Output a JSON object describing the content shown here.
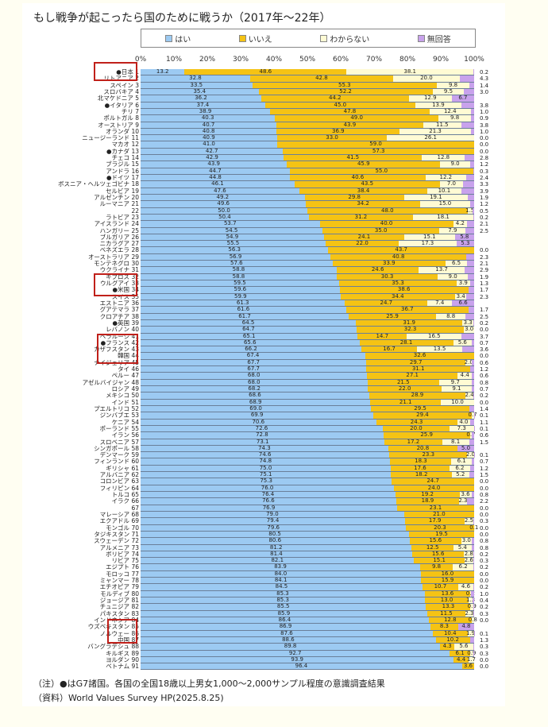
{
  "title": "もし戦争が起こったら国のために戦うか（2017年〜22年）",
  "legend": [
    {
      "label": "はい",
      "color": "#9ccaf2"
    },
    {
      "label": "いいえ",
      "color": "#f5c314"
    },
    {
      "label": "わからない",
      "color": "#fffbd4"
    },
    {
      "label": "無回答",
      "color": "#c8a2ec"
    }
  ],
  "axis_ticks": [
    "0%",
    "10%",
    "20%",
    "30%",
    "40%",
    "50%",
    "60%",
    "70%",
    "80%",
    "90%",
    "100%"
  ],
  "notes": {
    "note": "（注）●はG7諸国。各国の全国18歳以上男女1,000〜2,000サンプル程度の意識調査結果",
    "source": "（資料）World Values Survey HP(2025.8.25)"
  },
  "highlights": [
    "日本",
    "米国",
    "フランス",
    "韓国",
    "中国"
  ],
  "chart_data": {
    "type": "bar",
    "orientation": "horizontal-stacked-100",
    "title": "もし戦争が起こったら国のために戦うか（2017年〜22年）",
    "series_names": [
      "はい",
      "いいえ",
      "わからない",
      "無回答"
    ],
    "xlim": [
      0,
      100
    ],
    "legend_position": "top",
    "rows": [
      {
        "rank": 1,
        "country": "●日本",
        "yes": 13.2,
        "no": 48.6,
        "dk": 38.1,
        "na": 0.2
      },
      {
        "rank": 2,
        "country": "リトアニア",
        "yes": 32.8,
        "no": 42.8,
        "dk": 20.0,
        "na": 4.3
      },
      {
        "rank": 3,
        "country": "スペイン",
        "yes": 33.5,
        "no": 55.3,
        "dk": 9.8,
        "na": 1.4
      },
      {
        "rank": 4,
        "country": "スロバキア",
        "yes": 35.4,
        "no": 52.2,
        "dk": 9.5,
        "na": 3.0
      },
      {
        "rank": 5,
        "country": "北マケドニア",
        "yes": 36.2,
        "no": 44.2,
        "dk": 12.9,
        "na": 6.7
      },
      {
        "rank": 6,
        "country": "●イタリア",
        "yes": 37.4,
        "no": 45.0,
        "dk": 13.9,
        "na": 3.8
      },
      {
        "rank": 7,
        "country": "チリ",
        "yes": 38.9,
        "no": 47.8,
        "dk": 12.4,
        "na": 1.0
      },
      {
        "rank": 8,
        "country": "ポルトガル",
        "yes": 40.3,
        "no": 49.0,
        "dk": 9.8,
        "na": 0.9
      },
      {
        "rank": 9,
        "country": "オーストリア",
        "yes": 40.7,
        "no": 43.9,
        "dk": 11.5,
        "na": 3.8
      },
      {
        "rank": 10,
        "country": "オランダ",
        "yes": 40.8,
        "no": 36.9,
        "dk": 21.3,
        "na": 1.0
      },
      {
        "rank": 11,
        "country": "ニュージーランド",
        "yes": 40.9,
        "no": 33.0,
        "dk": 26.1,
        "na": 0.0
      },
      {
        "rank": 12,
        "country": "マカオ",
        "yes": 41.0,
        "no": 59.0,
        "dk": 0,
        "na": 0.0
      },
      {
        "rank": 13,
        "country": "●カナダ",
        "yes": 42.7,
        "no": 57.3,
        "dk": 0,
        "na": 0.0
      },
      {
        "rank": 14,
        "country": "チェコ",
        "yes": 42.9,
        "no": 41.5,
        "dk": 12.8,
        "na": 2.8
      },
      {
        "rank": 15,
        "country": "ブラジル",
        "yes": 43.9,
        "no": 45.9,
        "dk": 9.0,
        "na": 1.2
      },
      {
        "rank": 16,
        "country": "アンドラ",
        "yes": 44.7,
        "no": 55.0,
        "dk": 0,
        "na": 0.3
      },
      {
        "rank": 17,
        "country": "●ドイツ",
        "yes": 44.8,
        "no": 40.6,
        "dk": 12.2,
        "na": 2.4
      },
      {
        "rank": 18,
        "country": "ボスニア・ヘルツェゴビナ",
        "yes": 46.1,
        "no": 43.5,
        "dk": 7.0,
        "na": 3.3
      },
      {
        "rank": 19,
        "country": "セルビア",
        "yes": 47.6,
        "no": 38.4,
        "dk": 10.1,
        "na": 3.9
      },
      {
        "rank": 20,
        "country": "アルゼンチン",
        "yes": 49.2,
        "no": 29.8,
        "dk": 19.1,
        "na": 1.9
      },
      {
        "rank": 21,
        "country": "ルーマニア",
        "yes": 49.6,
        "no": 34.2,
        "dk": 15.0,
        "na": 1.2
      },
      {
        "rank": 22,
        "country": "",
        "yes": 50.0,
        "no": 48.0,
        "dk": 1.5,
        "na": 0.5
      },
      {
        "rank": 23,
        "country": "ラトビア",
        "yes": 50.4,
        "no": 31.2,
        "dk": 18.1,
        "na": 0.2
      },
      {
        "rank": 24,
        "country": "アイスランド",
        "yes": 53.7,
        "no": 40.0,
        "dk": 4.2,
        "na": 2.1
      },
      {
        "rank": 25,
        "country": "ハンガリー",
        "yes": 54.5,
        "no": 35.0,
        "dk": 7.9,
        "na": 2.5
      },
      {
        "rank": 26,
        "country": "ブルガリア",
        "yes": 54.9,
        "no": 24.1,
        "dk": 15.1,
        "na": 5.8
      },
      {
        "rank": 27,
        "country": "ニカラグア",
        "yes": 55.5,
        "no": 22.0,
        "dk": 17.3,
        "na": 5.3
      },
      {
        "rank": 28,
        "country": "ベネズエラ",
        "yes": 56.3,
        "no": 43.7,
        "dk": 0,
        "na": 0.0
      },
      {
        "rank": 29,
        "country": "オーストラリア",
        "yes": 56.9,
        "no": 40.8,
        "dk": 0,
        "na": 2.3
      },
      {
        "rank": 30,
        "country": "モンテネグロ",
        "yes": 57.6,
        "no": 33.9,
        "dk": 6.5,
        "na": 2.1
      },
      {
        "rank": 31,
        "country": "ウクライナ",
        "yes": 58.8,
        "no": 24.6,
        "dk": 13.7,
        "na": 2.9
      },
      {
        "rank": 32,
        "country": "キプロス",
        "yes": 58.8,
        "no": 30.3,
        "dk": 9.0,
        "na": 1.9
      },
      {
        "rank": 33,
        "country": "ウルグアイ",
        "yes": 59.5,
        "no": 35.3,
        "dk": 3.9,
        "na": 1.3
      },
      {
        "rank": 34,
        "country": "●米国",
        "yes": 59.6,
        "no": 38.6,
        "dk": 0,
        "na": 1.7
      },
      {
        "rank": 35,
        "country": "スイス",
        "yes": 59.9,
        "no": 34.4,
        "dk": 3.4,
        "na": 2.3
      },
      {
        "rank": 36,
        "country": "エストニア",
        "yes": 61.3,
        "no": 24.7,
        "dk": 7.4,
        "na": 6.6
      },
      {
        "rank": 37,
        "country": "グアテマラ",
        "yes": 61.6,
        "no": 36.7,
        "dk": 0,
        "na": 1.7
      },
      {
        "rank": 38,
        "country": "クロアチア",
        "yes": 61.7,
        "no": 25.9,
        "dk": 8.8,
        "na": 2.5
      },
      {
        "rank": 39,
        "country": "●英国",
        "yes": 64.5,
        "no": 31.9,
        "dk": 3.3,
        "na": 0.2
      },
      {
        "rank": 40,
        "country": "レバノン",
        "yes": 64.7,
        "no": 32.3,
        "dk": 3.0,
        "na": 0.0
      },
      {
        "rank": 41,
        "country": "ベラルーシ",
        "yes": 65.1,
        "no": 14.7,
        "dk": 16.5,
        "na": 3.7
      },
      {
        "rank": 42,
        "country": "●フランス",
        "yes": 65.6,
        "no": 28.1,
        "dk": 5.6,
        "na": 0.7
      },
      {
        "rank": 43,
        "country": "カザフスタン",
        "yes": 66.2,
        "no": 16.7,
        "dk": 13.5,
        "na": 3.6
      },
      {
        "rank": 44,
        "country": "韓国",
        "yes": 67.4,
        "no": 32.6,
        "dk": 0,
        "na": 0.0
      },
      {
        "rank": 45,
        "country": "ナイジェリア",
        "yes": 67.7,
        "no": 29.7,
        "dk": 2.0,
        "na": 0.6
      },
      {
        "rank": 46,
        "country": "タイ",
        "yes": 67.7,
        "no": 31.1,
        "dk": 0,
        "na": 1.2
      },
      {
        "rank": 47,
        "country": "ペルー",
        "yes": 68.0,
        "no": 27.1,
        "dk": 4.4,
        "na": 0.6
      },
      {
        "rank": 48,
        "country": "アゼルバイジャン",
        "yes": 68.0,
        "no": 21.5,
        "dk": 9.7,
        "na": 0.8
      },
      {
        "rank": 49,
        "country": "ロシア",
        "yes": 68.2,
        "no": 22.0,
        "dk": 9.1,
        "na": 0.7
      },
      {
        "rank": 50,
        "country": "メキシコ",
        "yes": 68.6,
        "no": 28.9,
        "dk": 2.4,
        "na": 0.2
      },
      {
        "rank": 51,
        "country": "インド",
        "yes": 68.9,
        "no": 21.1,
        "dk": 10.0,
        "na": 0.0
      },
      {
        "rank": 52,
        "country": "プエルトリコ",
        "yes": 69.0,
        "no": 29.5,
        "dk": 0,
        "na": 1.4
      },
      {
        "rank": 53,
        "country": "ジンバブエ",
        "yes": 69.9,
        "no": 29.4,
        "dk": 0.7,
        "na": 0.1
      },
      {
        "rank": 54,
        "country": "ケニア",
        "yes": 70.6,
        "no": 24.3,
        "dk": 4.0,
        "na": 1.1
      },
      {
        "rank": 55,
        "country": "ポーランド",
        "yes": 72.6,
        "no": 20.0,
        "dk": 7.3,
        "na": 0.1
      },
      {
        "rank": 56,
        "country": "イラン",
        "yes": 72.8,
        "no": 25.9,
        "dk": 0.7,
        "na": 0.6
      },
      {
        "rank": 57,
        "country": "スロベニア",
        "yes": 73.1,
        "no": 17.2,
        "dk": 8.1,
        "na": 1.5
      },
      {
        "rank": 58,
        "country": "シンガポール",
        "yes": 74.3,
        "no": 20.8,
        "dk": 0,
        "na": 5.0
      },
      {
        "rank": 59,
        "country": "デンマーク",
        "yes": 74.6,
        "no": 23.3,
        "dk": 2.0,
        "na": 0.1
      },
      {
        "rank": 60,
        "country": "フィンランド",
        "yes": 74.8,
        "no": 18.3,
        "dk": 6.1,
        "na": 0.7
      },
      {
        "rank": 61,
        "country": "ギリシャ",
        "yes": 75.0,
        "no": 17.6,
        "dk": 6.2,
        "na": 1.2
      },
      {
        "rank": 62,
        "country": "アルバニア",
        "yes": 75.1,
        "no": 18.2,
        "dk": 5.2,
        "na": 1.5
      },
      {
        "rank": 63,
        "country": "コロンビア",
        "yes": 75.3,
        "no": 24.7,
        "dk": 0,
        "na": 0.0
      },
      {
        "rank": 64,
        "country": "フィリピン",
        "yes": 76.0,
        "no": 24.0,
        "dk": 0,
        "na": 0.0
      },
      {
        "rank": 65,
        "country": "トルコ",
        "yes": 76.4,
        "no": 19.2,
        "dk": 3.6,
        "na": 0.8
      },
      {
        "rank": 66,
        "country": "イラク",
        "yes": 76.6,
        "no": 18.9,
        "dk": 2.3,
        "na": 2.2
      },
      {
        "rank": 67,
        "country": "",
        "yes": 76.9,
        "no": 23.1,
        "dk": 0,
        "na": 0.0
      },
      {
        "rank": 68,
        "country": "マレーシア",
        "yes": 79.0,
        "no": 21.0,
        "dk": 0,
        "na": 0.0
      },
      {
        "rank": 69,
        "country": "エクアドル",
        "yes": 79.4,
        "no": 17.9,
        "dk": 2.5,
        "na": 0.3
      },
      {
        "rank": 70,
        "country": "モンゴル",
        "yes": 79.6,
        "no": 20.3,
        "dk": 0.1,
        "na": 0.0
      },
      {
        "rank": 71,
        "country": "タジキスタン",
        "yes": 80.5,
        "no": 19.5,
        "dk": 0,
        "na": 0.0
      },
      {
        "rank": 72,
        "country": "スウェーデン",
        "yes": 80.6,
        "no": 15.6,
        "dk": 3.0,
        "na": 0.8
      },
      {
        "rank": 73,
        "country": "アルメニア",
        "yes": 81.2,
        "no": 12.5,
        "dk": 5.4,
        "na": 0.8
      },
      {
        "rank": 74,
        "country": "ボリビア",
        "yes": 81.4,
        "no": 15.6,
        "dk": 2.8,
        "na": 0.2
      },
      {
        "rank": 75,
        "country": "リビア",
        "yes": 82.1,
        "no": 15.1,
        "dk": 2.6,
        "na": 0.3
      },
      {
        "rank": 76,
        "country": "エジプト",
        "yes": 83.9,
        "no": 9.8,
        "dk": 6.2,
        "na": 0.2
      },
      {
        "rank": 77,
        "country": "モロッコ",
        "yes": 84.0,
        "no": 16.0,
        "dk": 0,
        "na": 0.0
      },
      {
        "rank": 78,
        "country": "ミャンマー",
        "yes": 84.1,
        "no": 15.9,
        "dk": 0,
        "na": 0.0
      },
      {
        "rank": 79,
        "country": "エチオピア",
        "yes": 84.5,
        "no": 10.7,
        "dk": 4.6,
        "na": 0.2
      },
      {
        "rank": 80,
        "country": "モルディブ",
        "yes": 85.3,
        "no": 13.6,
        "dk": 0.2,
        "na": 1.0
      },
      {
        "rank": 81,
        "country": "ジョージア",
        "yes": 85.3,
        "no": 13.0,
        "dk": 1.3,
        "na": 0.4
      },
      {
        "rank": 82,
        "country": "チュニジア",
        "yes": 85.5,
        "no": 13.3,
        "dk": 0.9,
        "na": 0.2
      },
      {
        "rank": 83,
        "country": "パキスタン",
        "yes": 85.9,
        "no": 11.5,
        "dk": 2.3,
        "na": 0.3
      },
      {
        "rank": 84,
        "country": "インドネシア",
        "yes": 86.4,
        "no": 12.8,
        "dk": 0.8,
        "na": 0.0
      },
      {
        "rank": 85,
        "country": "ウズベキスタン",
        "yes": 86.9,
        "no": 8.3,
        "dk": 0,
        "na": 4.8
      },
      {
        "rank": 86,
        "country": "ノルウェー",
        "yes": 87.6,
        "no": 10.4,
        "dk": 1.9,
        "na": 0.1
      },
      {
        "rank": 87,
        "country": "中国",
        "yes": 88.6,
        "no": 10.2,
        "dk": 0,
        "na": 1.3
      },
      {
        "rank": 88,
        "country": "バングラデシュ",
        "yes": 89.8,
        "no": 4.3,
        "dk": 5.6,
        "na": 0.3
      },
      {
        "rank": 89,
        "country": "キルギス",
        "yes": 92.7,
        "no": 6.1,
        "dk": 0.9,
        "na": 0.3
      },
      {
        "rank": 90,
        "country": "ヨルダン",
        "yes": 93.9,
        "no": 4.4,
        "dk": 1.7,
        "na": 0.0
      },
      {
        "rank": 91,
        "country": "ベトナム",
        "yes": 96.4,
        "no": 3.6,
        "dk": 0,
        "na": 0.0
      }
    ]
  }
}
